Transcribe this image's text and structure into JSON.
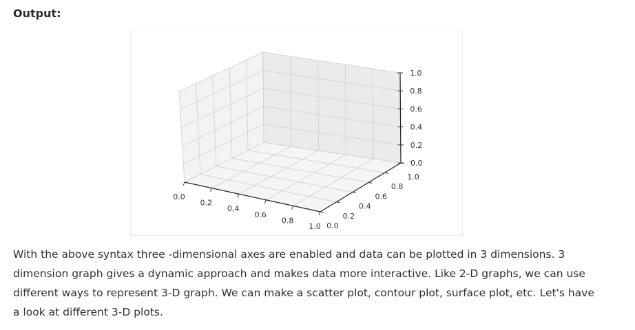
{
  "heading": "Output:",
  "figure": {
    "x_ticks": [
      "0.0",
      "0.2",
      "0.4",
      "0.6",
      "0.8",
      "1.0"
    ],
    "y_ticks": [
      "0.0",
      "0.2",
      "0.4",
      "0.6",
      "0.8",
      "1.0"
    ],
    "z_ticks": [
      "0.0",
      "0.2",
      "0.4",
      "0.6",
      "0.8",
      "1.0"
    ]
  },
  "chart_data": {
    "type": "scatter",
    "projection": "3d",
    "series": [],
    "xlim": [
      0.0,
      1.0
    ],
    "ylim": [
      0.0,
      1.0
    ],
    "zlim": [
      0.0,
      1.0
    ],
    "grid": true
  },
  "paragraph": "With the above syntax three -dimensional axes are enabled and data can be plotted in 3 dimensions. 3 dimension graph gives a dynamic approach and makes data more interactive. Like 2-D graphs, we can use different ways to represent 3-D graph. We can make a scatter plot, contour plot, surface plot, etc. Let's have a look at different 3-D plots."
}
